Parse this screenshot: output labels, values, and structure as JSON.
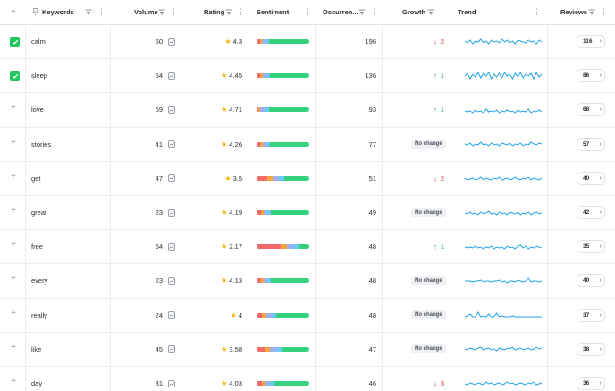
{
  "header": {
    "add_icon": "plus-icon",
    "keywords": "Keywords",
    "volume": "Volume",
    "rating": "Rating",
    "sentiment": "Sentiment",
    "occurrences": "Occurren...",
    "growth": "Growth",
    "trend": "Trend",
    "reviews": "Reviews"
  },
  "colors": {
    "neg": "#f26b6b",
    "mixed": "#f5a53b",
    "neutral": "#9fb0f2",
    "pos_light": "#6ec7f5",
    "pos": "#34d27b",
    "up": "#16a34a",
    "down": "#dc2626",
    "trend": "#1ea1e8"
  },
  "no_change_label": "No change",
  "rows": [
    {
      "keyword": "calm",
      "checked": true,
      "volume": "60",
      "rating": "4.3",
      "sentiment": [
        0.07,
        0.04,
        0.08,
        0.05,
        0.76
      ],
      "occurrences": "196",
      "growth": {
        "dir": "down",
        "value": "2"
      },
      "trend": [
        9,
        7,
        10,
        6,
        9,
        8,
        11,
        7,
        9,
        6,
        10,
        8,
        9,
        7,
        11,
        8,
        10,
        7,
        9,
        6,
        10,
        9,
        8,
        7,
        10,
        8,
        9,
        6,
        10,
        8
      ],
      "reviews": "116"
    },
    {
      "keyword": "sleep",
      "checked": true,
      "volume": "54",
      "rating": "4.45",
      "sentiment": [
        0.06,
        0.06,
        0.06,
        0.08,
        0.74
      ],
      "occurrences": "136",
      "growth": {
        "dir": "up",
        "value": "1"
      },
      "trend": [
        8,
        11,
        5,
        10,
        7,
        12,
        6,
        11,
        8,
        12,
        5,
        10,
        7,
        11,
        6,
        12,
        8,
        10,
        5,
        11,
        7,
        12,
        6,
        10,
        8,
        11,
        5,
        12,
        7,
        10
      ],
      "reviews": "86"
    },
    {
      "keyword": "love",
      "checked": false,
      "volume": "59",
      "rating": "4.71",
      "sentiment": [
        0.04,
        0.03,
        0.1,
        0.06,
        0.77
      ],
      "occurrences": "93",
      "growth": {
        "dir": "up",
        "value": "1"
      },
      "trend": [
        7,
        6,
        7,
        5,
        8,
        6,
        7,
        5,
        9,
        6,
        7,
        6,
        8,
        5,
        7,
        6,
        8,
        6,
        7,
        5,
        8,
        6,
        7,
        6,
        9,
        5,
        7,
        6,
        8,
        6
      ],
      "reviews": "68"
    },
    {
      "keyword": "stories",
      "checked": false,
      "volume": "41",
      "rating": "4.26",
      "sentiment": [
        0.07,
        0.05,
        0.08,
        0.06,
        0.74
      ],
      "occurrences": "77",
      "growth": {
        "dir": "none",
        "value": ""
      },
      "trend": [
        8,
        7,
        9,
        6,
        8,
        7,
        10,
        7,
        8,
        6,
        9,
        7,
        8,
        6,
        9,
        8,
        7,
        9,
        6,
        8,
        7,
        9,
        6,
        8,
        7,
        10,
        8,
        7,
        9,
        8
      ],
      "reviews": "57"
    },
    {
      "keyword": "get",
      "checked": false,
      "volume": "47",
      "rating": "3.5",
      "sentiment": [
        0.2,
        0.1,
        0.12,
        0.1,
        0.48
      ],
      "occurrences": "51",
      "growth": {
        "dir": "down",
        "value": "2"
      },
      "trend": [
        8,
        6,
        7,
        8,
        6,
        7,
        9,
        6,
        8,
        7,
        6,
        8,
        7,
        9,
        6,
        7,
        8,
        6,
        7,
        9,
        7,
        6,
        8,
        7,
        9,
        6,
        8,
        7,
        6,
        8
      ],
      "reviews": "40"
    },
    {
      "keyword": "great",
      "checked": false,
      "volume": "23",
      "rating": "4.19",
      "sentiment": [
        0.09,
        0.04,
        0.06,
        0.09,
        0.72
      ],
      "occurrences": "49",
      "growth": {
        "dir": "none",
        "value": ""
      },
      "trend": [
        8,
        7,
        9,
        7,
        8,
        6,
        9,
        7,
        8,
        10,
        7,
        8,
        6,
        9,
        7,
        8,
        6,
        9,
        8,
        7,
        9,
        6,
        8,
        7,
        9,
        6,
        8,
        9,
        7,
        8
      ],
      "reviews": "42"
    },
    {
      "keyword": "free",
      "checked": false,
      "volume": "54",
      "rating": "2.17",
      "sentiment": [
        0.45,
        0.12,
        0.13,
        0.12,
        0.18
      ],
      "occurrences": "48",
      "growth": {
        "dir": "up",
        "value": "1"
      },
      "trend": [
        8,
        7,
        8,
        7,
        9,
        7,
        8,
        6,
        8,
        7,
        9,
        6,
        8,
        7,
        8,
        6,
        9,
        7,
        8,
        6,
        9,
        10,
        7,
        9,
        6,
        8,
        7,
        9,
        8,
        7
      ],
      "reviews": "35"
    },
    {
      "keyword": "every",
      "checked": false,
      "volume": "23",
      "rating": "4.13",
      "sentiment": [
        0.09,
        0.05,
        0.06,
        0.07,
        0.73
      ],
      "occurrences": "48",
      "growth": {
        "dir": "none",
        "value": ""
      },
      "trend": [
        8,
        8,
        8,
        7,
        8,
        8,
        9,
        7,
        8,
        8,
        7,
        8,
        8,
        9,
        7,
        8,
        6,
        8,
        8,
        7,
        9,
        8,
        7,
        8,
        11,
        7,
        8,
        8,
        7,
        8
      ],
      "reviews": "40"
    },
    {
      "keyword": "really",
      "checked": false,
      "volume": "24",
      "rating": "4",
      "sentiment": [
        0.1,
        0.08,
        0.1,
        0.1,
        0.62
      ],
      "occurrences": "48",
      "growth": {
        "dir": "none",
        "value": ""
      },
      "trend": [
        6,
        7,
        9,
        6,
        6,
        11,
        6,
        7,
        6,
        9,
        6,
        6,
        10,
        6,
        7,
        6,
        6,
        6,
        7,
        6,
        6,
        6,
        6,
        6,
        6,
        6,
        6,
        6,
        6,
        6
      ],
      "reviews": "37"
    },
    {
      "keyword": "like",
      "checked": false,
      "volume": "45",
      "rating": "3.58",
      "sentiment": [
        0.15,
        0.1,
        0.12,
        0.1,
        0.53
      ],
      "occurrences": "47",
      "growth": {
        "dir": "none",
        "value": ""
      },
      "trend": [
        8,
        7,
        9,
        8,
        7,
        9,
        10,
        7,
        8,
        9,
        7,
        8,
        6,
        9,
        8,
        7,
        9,
        8,
        10,
        7,
        8,
        9,
        7,
        8,
        9,
        7,
        8,
        10,
        8,
        9
      ],
      "reviews": "38"
    },
    {
      "keyword": "day",
      "checked": false,
      "volume": "31",
      "rating": "4.03",
      "sentiment": [
        0.1,
        0.06,
        0.08,
        0.08,
        0.68
      ],
      "occurrences": "46",
      "growth": {
        "dir": "down",
        "value": "3"
      },
      "trend": [
        8,
        7,
        9,
        8,
        7,
        9,
        8,
        7,
        10,
        8,
        9,
        7,
        8,
        9,
        7,
        8,
        10,
        8,
        9,
        7,
        8,
        9,
        8,
        7,
        9,
        8,
        10,
        7,
        8,
        9
      ],
      "reviews": "36"
    }
  ]
}
